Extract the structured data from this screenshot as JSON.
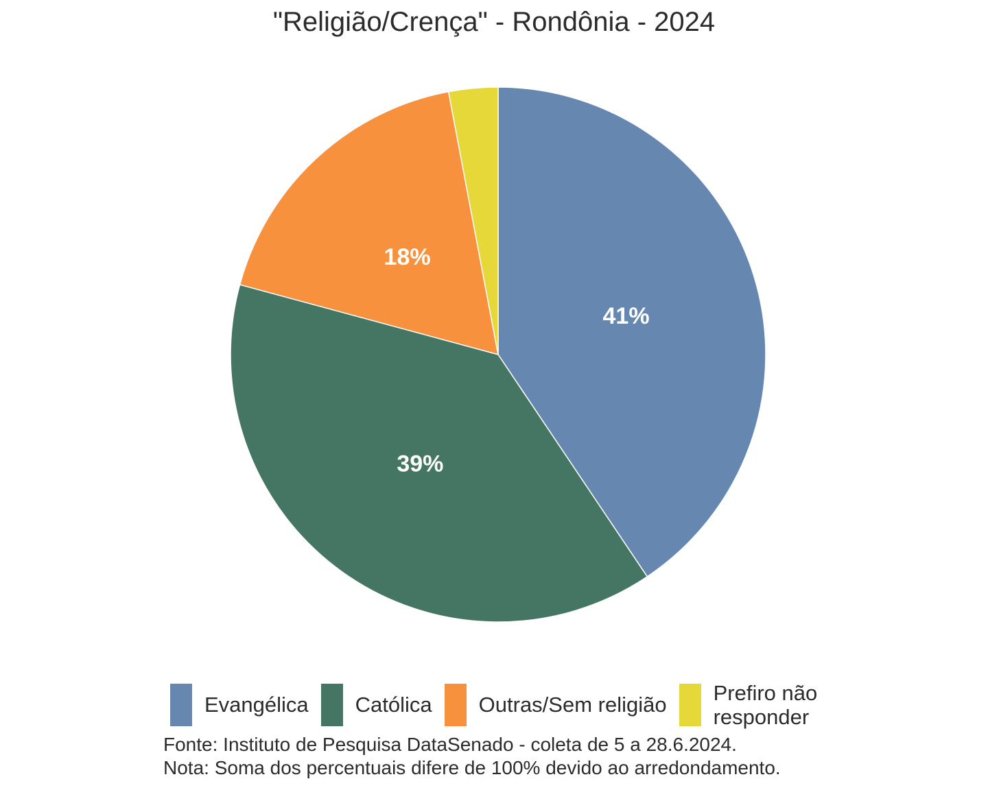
{
  "chart_data": {
    "type": "pie",
    "title": "\"Religião/Crença\" - Rondônia - 2024",
    "categories": [
      "Evangélica",
      "Católica",
      "Outras/Sem religião",
      "Prefiro não responder"
    ],
    "legend_labels": [
      "Evangélica",
      "Católica",
      "Outras/Sem religião",
      "Prefiro não\nresponder"
    ],
    "values": [
      41,
      39,
      18,
      3
    ],
    "labels": [
      "41%",
      "39%",
      "18%",
      ""
    ],
    "colors": [
      "#6687B0",
      "#457563",
      "#F8913D",
      "#E5D838"
    ],
    "legend_position": "bottom",
    "start": "top, clockwise"
  },
  "footnotes": {
    "source": "Fonte: Instituto de Pesquisa DataSenado - coleta de 5 a 28.6.2024.",
    "note": "Nota: Soma dos percentuais difere de 100% devido ao arredondamento."
  }
}
